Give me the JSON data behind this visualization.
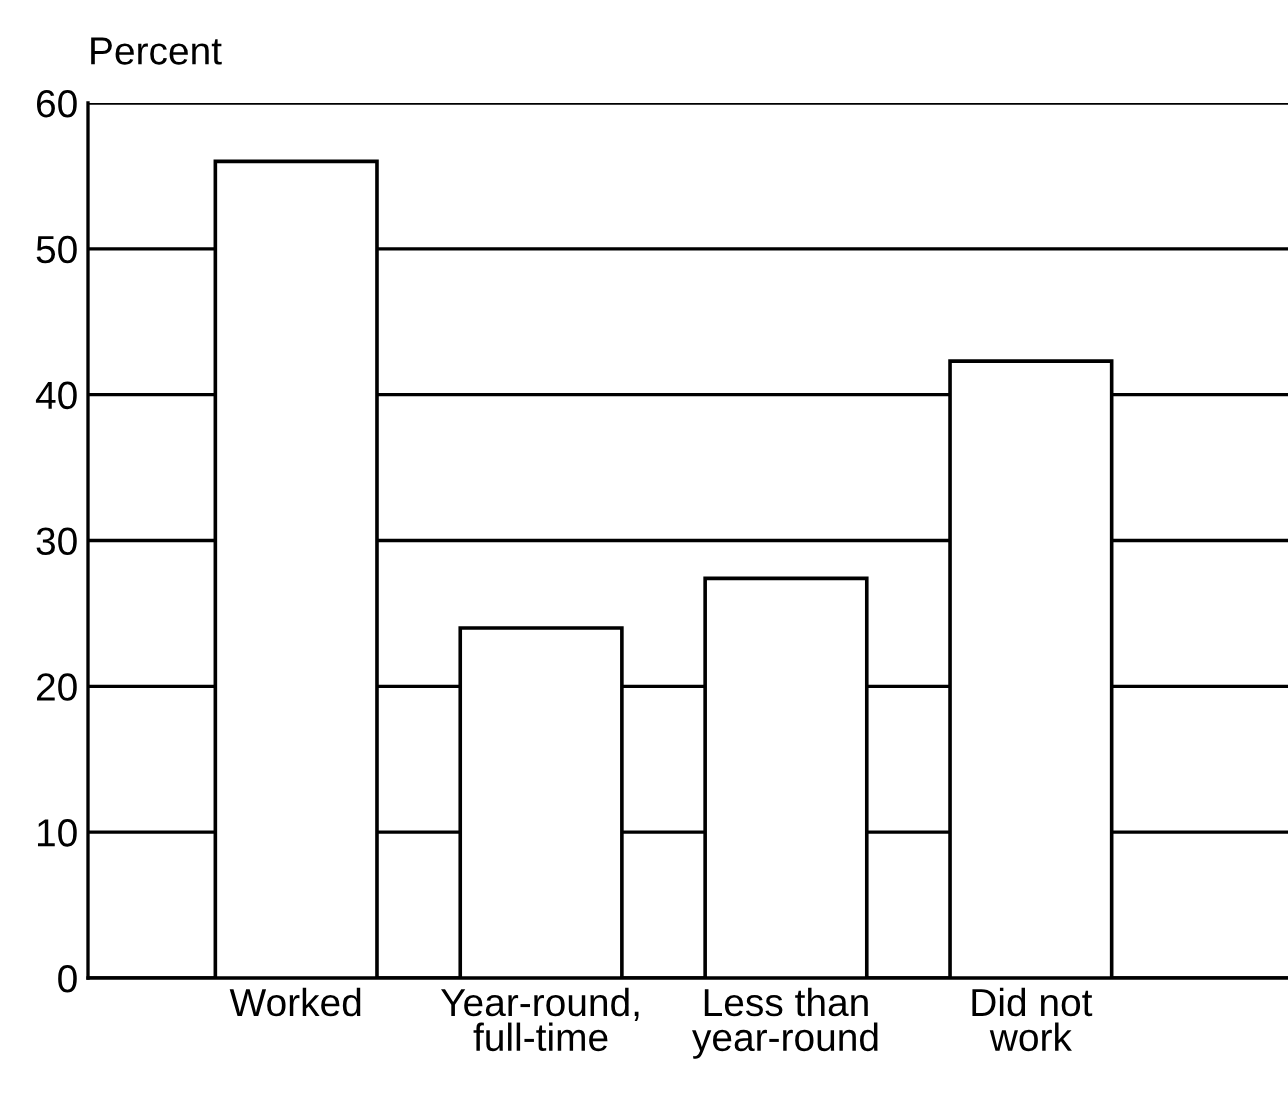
{
  "chart_data": {
    "type": "bar",
    "ylabel": "Percent",
    "categories": [
      "Worked",
      "Year-round,\nfull-time",
      "Less than\nyear-round",
      "Did not\nwork"
    ],
    "values": [
      56,
      24,
      27.4,
      42.3
    ],
    "color": "#ffffff",
    "ylim": [
      0,
      60
    ],
    "yticks": [
      0,
      10,
      20,
      30,
      40,
      50,
      60
    ],
    "grid": "y"
  }
}
